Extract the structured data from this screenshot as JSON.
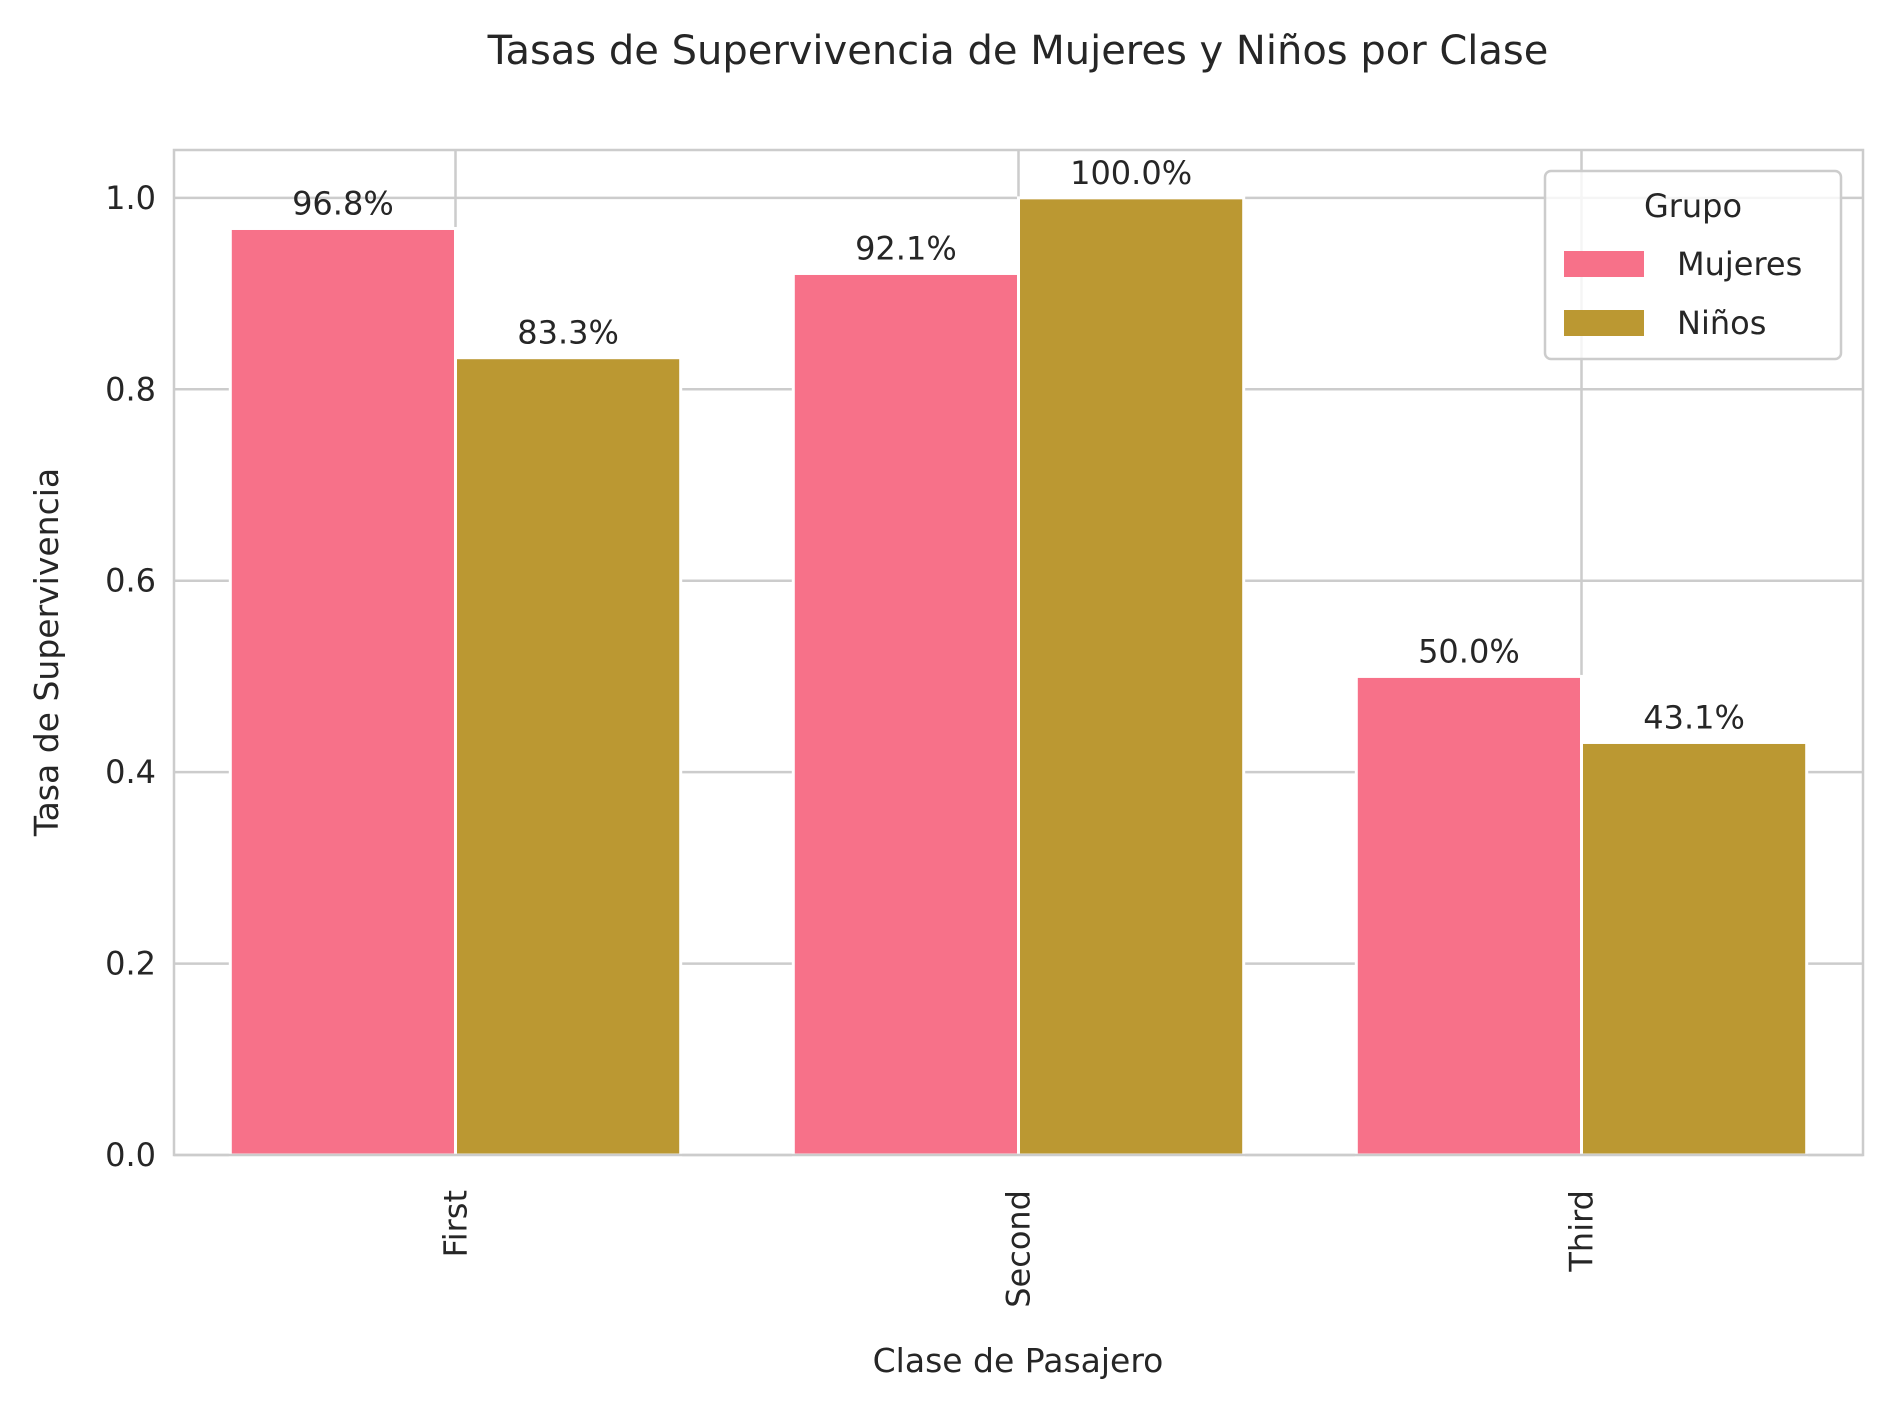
{
  "chart_data": {
    "type": "bar",
    "title": "Tasas de Supervivencia de Mujeres y Niños por Clase",
    "xlabel": "Clase de Pasajero",
    "ylabel": "Tasa de Supervivencia",
    "categories": [
      "First",
      "Second",
      "Third"
    ],
    "series": [
      {
        "name": "Mujeres",
        "values": [
          0.968,
          0.921,
          0.5
        ],
        "labels": [
          "96.8%",
          "92.1%",
          "50.0%"
        ],
        "color": "#f77189"
      },
      {
        "name": "Niños",
        "values": [
          0.833,
          1.0,
          0.431
        ],
        "labels": [
          "83.3%",
          "100.0%",
          "43.1%"
        ],
        "color": "#bb9832"
      }
    ],
    "ylim": [
      0,
      1.05
    ],
    "yticks": [
      0.0,
      0.2,
      0.4,
      0.6,
      0.8,
      1.0
    ],
    "ytick_labels": [
      "0.0",
      "0.2",
      "0.4",
      "0.6",
      "0.8",
      "1.0"
    ],
    "grid": true,
    "legend": {
      "title": "Grupo",
      "placement": "top-right"
    }
  }
}
